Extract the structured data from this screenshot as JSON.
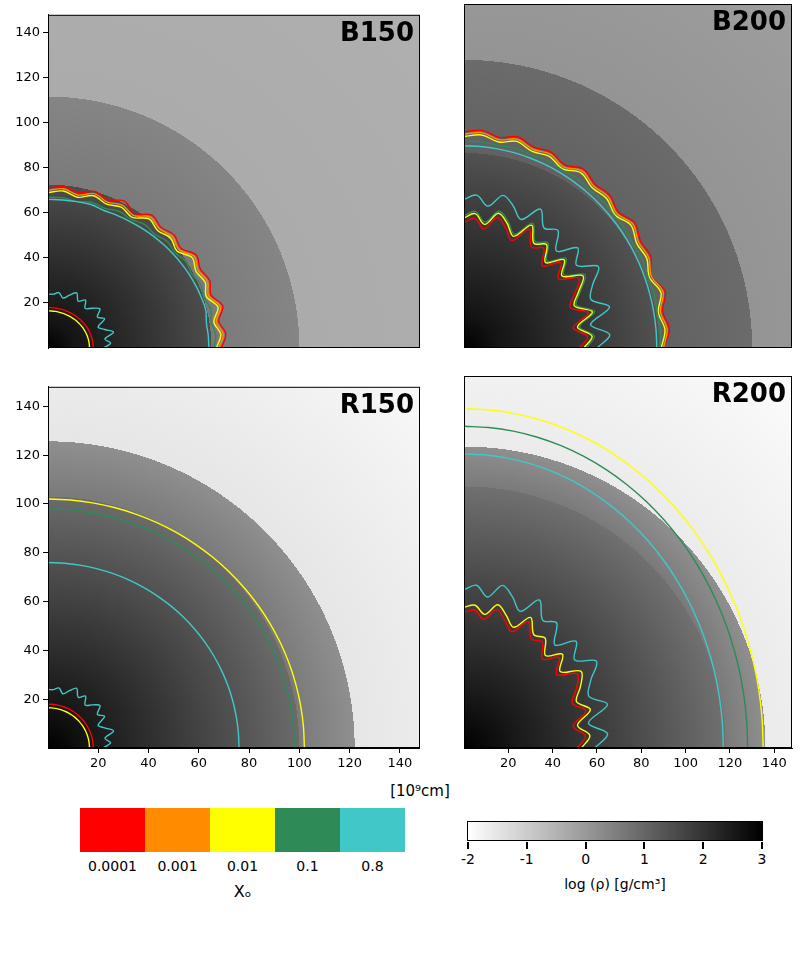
{
  "chart_data": [
    {
      "type": "contour",
      "title": "B150",
      "tick_labels": "y",
      "xlim": [
        0,
        148
      ],
      "ylim": [
        0,
        148
      ],
      "xticks": [
        20,
        40,
        60,
        80,
        100,
        120,
        140
      ],
      "yticks": [
        20,
        40,
        60,
        80,
        100,
        120,
        140
      ],
      "density_profile": {
        "r": [
          0,
          10,
          65,
          65,
          100,
          100,
          215
        ],
        "log_rho": [
          3,
          2.6,
          1.5,
          0.6,
          0.4,
          -0.35,
          -0.45
        ]
      },
      "angles": [
        0,
        5,
        10,
        15,
        20,
        25,
        30,
        35,
        40,
        45,
        50,
        55,
        60,
        65,
        70,
        75,
        80,
        85,
        90
      ],
      "contours": [
        {
          "level": 0.8,
          "r": [
            64,
            64,
            64,
            65,
            65,
            65,
            65,
            65,
            65,
            65,
            65,
            65,
            65,
            65,
            65,
            66,
            66,
            66,
            66
          ]
        },
        {
          "level": 0.1,
          "r": [
            66,
            67,
            66,
            67,
            66,
            67,
            66,
            67,
            66,
            67,
            66,
            67,
            66,
            67,
            66,
            67,
            66,
            67,
            67
          ]
        },
        {
          "level": 0.01,
          "r": [
            67,
            69,
            67,
            70,
            67,
            69,
            68,
            70,
            67,
            69,
            68,
            70,
            67,
            69,
            68,
            70,
            68,
            70,
            69
          ]
        },
        {
          "level": 0.001,
          "r": [
            68,
            70,
            68,
            71,
            68,
            70,
            69,
            71,
            68,
            70,
            69,
            71,
            68,
            70,
            69,
            71,
            69,
            71,
            70
          ]
        },
        {
          "level": 0.0001,
          "r": [
            69,
            71,
            69,
            72,
            69,
            71,
            70,
            72,
            69,
            71,
            70,
            72,
            69,
            72,
            70,
            72,
            70,
            72,
            71
          ]
        },
        {
          "level": 0.8,
          "r": [
            22,
            25,
            23,
            27,
            24,
            22,
            26,
            24,
            27,
            25,
            23,
            26,
            24,
            27,
            25,
            23,
            25,
            24,
            24
          ]
        },
        {
          "level": 0.01,
          "r": [
            16.5,
            16.5,
            16.5,
            16.5,
            16.5,
            16.5,
            16.5,
            16.5,
            16.5,
            16.5,
            16.5,
            16.5,
            16.5,
            16.5,
            16.5,
            16.5,
            16.5,
            16.5,
            16.5
          ]
        },
        {
          "level": 0.0001,
          "r": [
            18,
            18,
            18,
            18,
            18,
            18,
            18,
            18,
            18,
            18,
            18,
            18,
            18,
            18,
            18,
            18,
            18,
            18,
            18
          ]
        }
      ]
    },
    {
      "type": "contour",
      "title": "B200",
      "tick_labels": false,
      "xlim": [
        0,
        148
      ],
      "ylim": [
        0,
        148
      ],
      "xticks": [
        20,
        40,
        60,
        80,
        100,
        120,
        140
      ],
      "yticks": [
        20,
        40,
        60,
        80,
        100,
        120,
        140
      ],
      "density_profile": {
        "r": [
          0,
          15,
          88,
          88,
          130,
          130,
          215
        ],
        "log_rho": [
          3,
          2.6,
          1.4,
          1.1,
          0.9,
          0.1,
          -0.1
        ]
      },
      "angles": [
        0,
        5,
        10,
        15,
        20,
        25,
        30,
        35,
        40,
        45,
        50,
        55,
        60,
        65,
        70,
        75,
        80,
        85,
        90
      ],
      "contours": [
        {
          "level": 0.8,
          "r": [
            87,
            87,
            87,
            87,
            87,
            87,
            87,
            87,
            87,
            87,
            87,
            87,
            87,
            87,
            87,
            87,
            87,
            87,
            87
          ]
        },
        {
          "level": 0.1,
          "r": [
            88.5,
            89,
            88.5,
            89,
            88.5,
            89,
            88.5,
            89,
            88.5,
            89,
            88.5,
            89,
            88.5,
            89,
            88.5,
            89,
            88.5,
            89,
            89
          ]
        },
        {
          "level": 0.01,
          "r": [
            89,
            91,
            89,
            92,
            89,
            91,
            90,
            92,
            89,
            91,
            90,
            92,
            89,
            91,
            90,
            92,
            90,
            92,
            91
          ]
        },
        {
          "level": 0.001,
          "r": [
            90,
            92,
            90,
            93,
            90,
            92,
            91,
            93,
            90,
            92,
            91,
            93,
            90,
            92,
            91,
            93,
            91,
            93,
            92
          ]
        },
        {
          "level": 0.0001,
          "r": [
            90,
            93,
            91,
            94,
            90,
            93,
            92,
            94,
            91,
            93,
            92,
            94,
            91,
            93,
            92,
            94,
            92,
            94,
            93
          ]
        },
        {
          "level": 0.0001,
          "r": [
            52,
            56,
            50,
            58,
            51,
            55,
            60,
            52,
            57,
            50,
            56,
            53,
            59,
            51,
            55,
            58,
            52,
            56,
            54
          ]
        },
        {
          "level": 0.01,
          "r": [
            54,
            58,
            52,
            60,
            53,
            57,
            62,
            54,
            59,
            52,
            58,
            55,
            61,
            53,
            57,
            60,
            54,
            58,
            56
          ]
        },
        {
          "level": 0.1,
          "r": [
            55,
            59,
            53,
            61,
            54,
            58,
            63,
            55,
            60,
            53,
            59,
            56,
            62,
            54,
            58,
            61,
            55,
            59,
            57
          ]
        },
        {
          "level": 0.8,
          "r": [
            60,
            66,
            58,
            68,
            61,
            64,
            70,
            62,
            67,
            59,
            66,
            63,
            69,
            61,
            65,
            68,
            62,
            66,
            64
          ]
        }
      ]
    },
    {
      "type": "contour",
      "title": "R150",
      "tick_labels": true,
      "xlim": [
        0,
        148
      ],
      "ylim": [
        0,
        148
      ],
      "xticks": [
        20,
        40,
        60,
        80,
        100,
        120,
        140
      ],
      "yticks": [
        20,
        40,
        60,
        80,
        100,
        120,
        140
      ],
      "density_profile": {
        "r": [
          0,
          20,
          100,
          100,
          122,
          122,
          215
        ],
        "log_rho": [
          3,
          2.5,
          0.9,
          0.6,
          0.2,
          -1.5,
          -1.9
        ]
      },
      "angles": [
        0,
        5,
        10,
        15,
        20,
        25,
        30,
        35,
        40,
        45,
        50,
        55,
        60,
        65,
        70,
        75,
        80,
        85,
        90
      ],
      "contours": [
        {
          "level": 0.01,
          "r": [
            102,
            102,
            102,
            102,
            102,
            102,
            102,
            102,
            102,
            102,
            102,
            102,
            102,
            102,
            102,
            102,
            102,
            102,
            102
          ]
        },
        {
          "level": 0.1,
          "r": [
            98,
            98,
            98,
            98,
            98,
            98,
            98,
            98,
            98,
            98,
            98,
            98,
            98,
            98,
            98,
            98,
            98,
            98,
            98
          ]
        },
        {
          "level": 0.8,
          "r": [
            76,
            76,
            76,
            76,
            76,
            76,
            76,
            76,
            76,
            76,
            76,
            76,
            76,
            76,
            76,
            76,
            76,
            76,
            76
          ]
        },
        {
          "level": 0.8,
          "r": [
            22,
            25,
            23,
            27,
            24,
            22,
            26,
            24,
            27,
            25,
            23,
            26,
            24,
            27,
            25,
            23,
            25,
            24,
            24
          ]
        },
        {
          "level": 0.01,
          "r": [
            16.5,
            16.5,
            16.5,
            16.5,
            16.5,
            16.5,
            16.5,
            16.5,
            16.5,
            16.5,
            16.5,
            16.5,
            16.5,
            16.5,
            16.5,
            16.5,
            16.5,
            16.5,
            16.5
          ]
        },
        {
          "level": 0.0001,
          "r": [
            18,
            18,
            18,
            18,
            18,
            18,
            18,
            18,
            18,
            18,
            18,
            18,
            18,
            18,
            18,
            18,
            18,
            18,
            18
          ]
        }
      ]
    },
    {
      "type": "contour",
      "title": "R200",
      "tick_labels": "x",
      "xlim": [
        0,
        148
      ],
      "ylim": [
        0,
        148
      ],
      "xticks": [
        20,
        40,
        60,
        80,
        100,
        120,
        140
      ],
      "yticks": [
        20,
        40,
        60,
        80,
        100,
        120,
        140
      ],
      "density_profile": {
        "r": [
          0,
          25,
          118,
          118,
          136,
          136,
          215
        ],
        "log_rho": [
          3,
          2.5,
          0.8,
          0.6,
          0.2,
          -1.6,
          -1.9
        ]
      },
      "angles": [
        0,
        5,
        10,
        15,
        20,
        25,
        30,
        35,
        40,
        45,
        50,
        55,
        60,
        65,
        70,
        75,
        80,
        85,
        90
      ],
      "contours": [
        {
          "level": 0.01,
          "r": [
            135,
            135,
            135,
            135,
            135,
            135,
            135,
            135,
            135,
            135,
            135,
            135,
            135,
            135,
            135,
            135,
            135,
            135,
            135
          ]
        },
        {
          "level": 0.1,
          "r": [
            128,
            128,
            128,
            128,
            128,
            128,
            128,
            128,
            128,
            128,
            128,
            128,
            128,
            128,
            128,
            128,
            128,
            128,
            128
          ]
        },
        {
          "level": 0.8,
          "r": [
            117,
            117,
            117,
            117,
            117,
            117,
            117,
            117,
            117,
            117,
            117,
            117,
            117,
            117,
            117,
            117,
            117,
            117,
            117
          ]
        },
        {
          "level": 0.0001,
          "r": [
            51,
            55,
            50,
            57,
            52,
            56,
            59,
            51,
            56,
            50,
            55,
            53,
            58,
            51,
            54,
            57,
            52,
            55,
            54
          ]
        },
        {
          "level": 0.01,
          "r": [
            53,
            57,
            52,
            59,
            54,
            58,
            61,
            53,
            58,
            52,
            57,
            55,
            60,
            53,
            56,
            59,
            54,
            57,
            56
          ]
        },
        {
          "level": 0.8,
          "r": [
            59,
            65,
            57,
            67,
            60,
            63,
            69,
            61,
            66,
            58,
            65,
            62,
            68,
            60,
            64,
            67,
            61,
            65,
            63
          ]
        }
      ]
    }
  ],
  "xlabel": "[10⁹cm]",
  "contour_legend": {
    "title": "Xₒ",
    "levels": [
      0.0001,
      0.001,
      0.01,
      0.1,
      0.8
    ],
    "colors": [
      "#ff0000",
      "#ff8c00",
      "#ffff00",
      "#2e8b57",
      "#40c8c8"
    ]
  },
  "density_colorbar": {
    "label": "log (ρ)  [g/cm³]",
    "range": [
      -2,
      3
    ],
    "ticks": [
      -2,
      -1,
      0,
      1,
      2,
      3
    ]
  }
}
